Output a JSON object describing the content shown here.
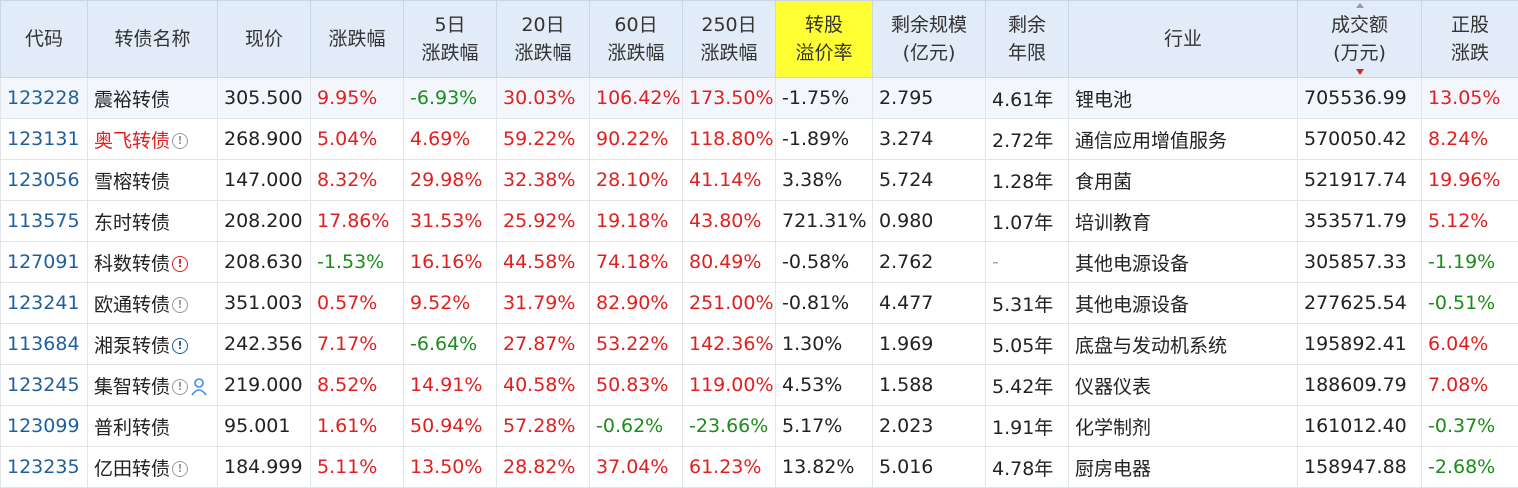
{
  "table": {
    "headers": [
      [
        "代码"
      ],
      [
        "转债名称"
      ],
      [
        "现价"
      ],
      [
        "涨跌幅"
      ],
      [
        "5日",
        "涨跌幅"
      ],
      [
        "20日",
        "涨跌幅"
      ],
      [
        "60日",
        "涨跌幅"
      ],
      [
        "250日",
        "涨跌幅"
      ],
      [
        "转股",
        "溢价率"
      ],
      [
        "剩余规模",
        "(亿元)"
      ],
      [
        "剩余",
        "年限"
      ],
      [
        "行业"
      ],
      [
        "成交额",
        "(万元)"
      ],
      [
        "正股",
        "涨跌"
      ]
    ],
    "rows": [
      [
        "123228",
        "震裕转债",
        "305.500",
        "9.95%",
        "-6.93%",
        "30.03%",
        "106.42%",
        "173.50%",
        "-1.75%",
        "2.795",
        "4.61年",
        "锂电池",
        "705536.99",
        "13.05%"
      ],
      [
        "123131",
        "奥飞转债",
        "268.900",
        "5.04%",
        "4.69%",
        "59.22%",
        "90.22%",
        "118.80%",
        "-1.89%",
        "3.274",
        "2.72年",
        "通信应用增值服务",
        "570050.42",
        "8.24%"
      ],
      [
        "123056",
        "雪榕转债",
        "147.000",
        "8.32%",
        "29.98%",
        "32.38%",
        "28.10%",
        "41.14%",
        "3.38%",
        "5.724",
        "1.28年",
        "食用菌",
        "521917.74",
        "19.96%"
      ],
      [
        "113575",
        "东时转债",
        "208.200",
        "17.86%",
        "31.53%",
        "25.92%",
        "19.18%",
        "43.80%",
        "721.31%",
        "0.980",
        "1.07年",
        "培训教育",
        "353571.79",
        "5.12%"
      ],
      [
        "127091",
        "科数转债",
        "208.630",
        "-1.53%",
        "16.16%",
        "44.58%",
        "74.18%",
        "80.49%",
        "-0.58%",
        "2.762",
        "-",
        "其他电源设备",
        "305857.33",
        "-1.19%"
      ],
      [
        "123241",
        "欧通转债",
        "351.003",
        "0.57%",
        "9.52%",
        "31.79%",
        "82.90%",
        "251.00%",
        "-0.81%",
        "4.477",
        "5.31年",
        "其他电源设备",
        "277625.54",
        "-0.51%"
      ],
      [
        "113684",
        "湘泵转债",
        "242.356",
        "7.17%",
        "-6.64%",
        "27.87%",
        "53.22%",
        "142.36%",
        "1.30%",
        "1.969",
        "5.05年",
        "底盘与发动机系统",
        "195892.41",
        "6.04%"
      ],
      [
        "123245",
        "集智转债",
        "219.000",
        "8.52%",
        "14.91%",
        "40.58%",
        "50.83%",
        "119.00%",
        "4.53%",
        "1.588",
        "5.42年",
        "仪器仪表",
        "188609.79",
        "7.08%"
      ],
      [
        "123099",
        "普利转债",
        "95.001",
        "1.61%",
        "50.94%",
        "57.28%",
        "-0.62%",
        "-23.66%",
        "5.17%",
        "2.023",
        "1.91年",
        "化学制剂",
        "161012.40",
        "-0.37%"
      ],
      [
        "123235",
        "亿田转债",
        "184.999",
        "5.11%",
        "13.50%",
        "28.82%",
        "37.04%",
        "61.23%",
        "13.82%",
        "5.016",
        "4.78年",
        "厨房电器",
        "158947.88",
        "-2.68%"
      ]
    ]
  }
}
